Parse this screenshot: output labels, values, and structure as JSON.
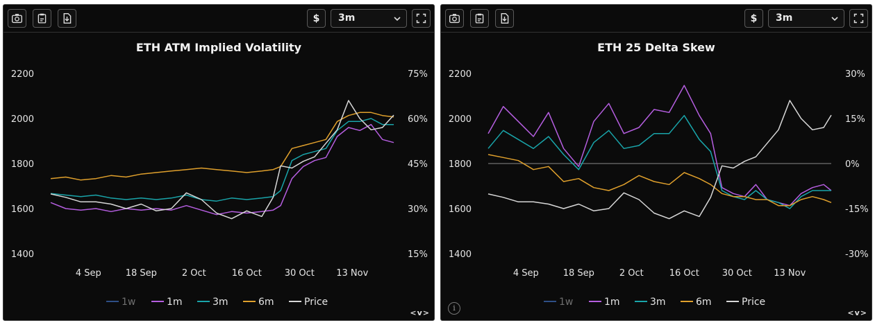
{
  "toolbar": {
    "icons": [
      "camera-icon",
      "clipboard-icon",
      "download-icon"
    ],
    "currency_label": "$",
    "range_label": "3m",
    "fullscreen_icon": "fullscreen-icon"
  },
  "colors": {
    "1w": "#2e4f86",
    "1m": "#b55ee0",
    "3m": "#19a5aa",
    "6m": "#e0a02c",
    "Price": "#d8d8d8"
  },
  "chart_data": [
    {
      "type": "line",
      "title": "ETH ATM Implied Volatility",
      "x_ticks": [
        "4 Sep",
        "18 Sep",
        "2 Oct",
        "16 Oct",
        "30 Oct",
        "13 Nov"
      ],
      "x_range": [
        "2023-08-25",
        "2023-11-24"
      ],
      "y_left": {
        "ticks": [
          "2200",
          "2000",
          "1800",
          "1600",
          "1400"
        ],
        "range": [
          1400,
          2200
        ]
      },
      "y_right": {
        "ticks": [
          "75%",
          "60%",
          "45%",
          "30%",
          "15%"
        ],
        "range": [
          15,
          75
        ]
      },
      "legend": [
        "1w",
        "1m",
        "3m",
        "6m",
        "Price"
      ],
      "legend_position": "bottom",
      "series": [
        {
          "name": "1w",
          "axis": "right",
          "x": [
            "2023-08-25",
            "2023-11-24"
          ],
          "values": [
            null,
            null
          ]
        },
        {
          "name": "1m",
          "axis": "right",
          "x": [
            "2023-08-25",
            "2023-08-29",
            "2023-09-02",
            "2023-09-06",
            "2023-09-10",
            "2023-09-14",
            "2023-09-18",
            "2023-09-22",
            "2023-09-26",
            "2023-09-30",
            "2023-10-04",
            "2023-10-08",
            "2023-10-12",
            "2023-10-16",
            "2023-10-20",
            "2023-10-23",
            "2023-10-25",
            "2023-10-28",
            "2023-10-31",
            "2023-11-03",
            "2023-11-06",
            "2023-11-09",
            "2023-11-12",
            "2023-11-15",
            "2023-11-18",
            "2023-11-21",
            "2023-11-24"
          ],
          "values": [
            32,
            30,
            29.5,
            30,
            29,
            30,
            29.5,
            30,
            29.5,
            31,
            29.5,
            28,
            29,
            28.5,
            29,
            29.5,
            31,
            40,
            44,
            46,
            47,
            54,
            57,
            56,
            58,
            53,
            52
          ]
        },
        {
          "name": "3m",
          "axis": "right",
          "x": [
            "2023-08-25",
            "2023-08-29",
            "2023-09-02",
            "2023-09-06",
            "2023-09-10",
            "2023-09-14",
            "2023-09-18",
            "2023-09-22",
            "2023-09-26",
            "2023-09-30",
            "2023-10-04",
            "2023-10-08",
            "2023-10-12",
            "2023-10-16",
            "2023-10-20",
            "2023-10-23",
            "2023-10-25",
            "2023-10-28",
            "2023-10-31",
            "2023-11-03",
            "2023-11-06",
            "2023-11-09",
            "2023-11-12",
            "2023-11-15",
            "2023-11-18",
            "2023-11-21",
            "2023-11-24"
          ],
          "values": [
            35,
            34.5,
            34,
            34.5,
            33.5,
            33,
            33.5,
            33,
            33.5,
            34.5,
            33,
            32.5,
            33.5,
            33,
            33.5,
            34,
            36,
            46,
            48,
            49,
            50,
            56,
            59,
            59,
            60,
            58,
            58
          ]
        },
        {
          "name": "6m",
          "axis": "right",
          "x": [
            "2023-08-25",
            "2023-08-29",
            "2023-09-02",
            "2023-09-06",
            "2023-09-10",
            "2023-09-14",
            "2023-09-18",
            "2023-09-22",
            "2023-09-26",
            "2023-09-30",
            "2023-10-04",
            "2023-10-08",
            "2023-10-12",
            "2023-10-16",
            "2023-10-20",
            "2023-10-23",
            "2023-10-25",
            "2023-10-28",
            "2023-10-31",
            "2023-11-03",
            "2023-11-06",
            "2023-11-09",
            "2023-11-12",
            "2023-11-15",
            "2023-11-18",
            "2023-11-21",
            "2023-11-24"
          ],
          "values": [
            40,
            40.5,
            39.5,
            40,
            41,
            40.5,
            41.5,
            42,
            42.5,
            43,
            43.5,
            43,
            42.5,
            42,
            42.5,
            43,
            44,
            50,
            51,
            52,
            53,
            59,
            61,
            62,
            62,
            61,
            60.5
          ]
        },
        {
          "name": "Price",
          "axis": "left",
          "x": [
            "2023-08-25",
            "2023-08-29",
            "2023-09-02",
            "2023-09-06",
            "2023-09-10",
            "2023-09-14",
            "2023-09-18",
            "2023-09-22",
            "2023-09-26",
            "2023-09-30",
            "2023-10-04",
            "2023-10-08",
            "2023-10-12",
            "2023-10-16",
            "2023-10-20",
            "2023-10-23",
            "2023-10-25",
            "2023-10-28",
            "2023-10-31",
            "2023-11-03",
            "2023-11-06",
            "2023-11-09",
            "2023-11-12",
            "2023-11-15",
            "2023-11-18",
            "2023-11-21",
            "2023-11-24"
          ],
          "values": [
            1665,
            1650,
            1630,
            1630,
            1620,
            1600,
            1620,
            1590,
            1600,
            1670,
            1640,
            1580,
            1555,
            1590,
            1565,
            1650,
            1790,
            1780,
            1810,
            1830,
            1890,
            1950,
            2080,
            2000,
            1950,
            1960,
            2015
          ]
        }
      ]
    },
    {
      "type": "line",
      "title": "ETH 25 Delta Skew",
      "x_ticks": [
        "4 Sep",
        "18 Sep",
        "2 Oct",
        "16 Oct",
        "30 Oct",
        "13 Nov"
      ],
      "x_range": [
        "2023-08-25",
        "2023-11-24"
      ],
      "y_left": {
        "ticks": [
          "2200",
          "2000",
          "1800",
          "1600",
          "1400"
        ],
        "range": [
          1400,
          2200
        ]
      },
      "y_right": {
        "ticks": [
          "30%",
          "15%",
          "0%",
          "-15%",
          "-30%"
        ],
        "range": [
          -30,
          30
        ]
      },
      "zero_line": 0,
      "legend": [
        "1w",
        "1m",
        "3m",
        "6m",
        "Price"
      ],
      "legend_position": "bottom",
      "series": [
        {
          "name": "1w",
          "axis": "right",
          "x": [
            "2023-08-25",
            "2023-11-24"
          ],
          "values": [
            null,
            null
          ]
        },
        {
          "name": "1m",
          "axis": "right",
          "x": [
            "2023-08-25",
            "2023-08-29",
            "2023-09-02",
            "2023-09-06",
            "2023-09-10",
            "2023-09-14",
            "2023-09-18",
            "2023-09-22",
            "2023-09-26",
            "2023-09-30",
            "2023-10-04",
            "2023-10-08",
            "2023-10-12",
            "2023-10-16",
            "2023-10-20",
            "2023-10-23",
            "2023-10-26",
            "2023-10-29",
            "2023-11-01",
            "2023-11-04",
            "2023-11-07",
            "2023-11-10",
            "2023-11-13",
            "2023-11-16",
            "2023-11-19",
            "2023-11-22",
            "2023-11-24"
          ],
          "values": [
            10,
            19,
            14,
            9,
            17,
            5,
            -1,
            14,
            20,
            10,
            12,
            18,
            17,
            26,
            16,
            10,
            -8,
            -10,
            -11,
            -7,
            -12,
            -13,
            -14,
            -10,
            -8,
            -7,
            -9
          ]
        },
        {
          "name": "3m",
          "axis": "right",
          "x": [
            "2023-08-25",
            "2023-08-29",
            "2023-09-02",
            "2023-09-06",
            "2023-09-10",
            "2023-09-14",
            "2023-09-18",
            "2023-09-22",
            "2023-09-26",
            "2023-09-30",
            "2023-10-04",
            "2023-10-08",
            "2023-10-12",
            "2023-10-16",
            "2023-10-20",
            "2023-10-23",
            "2023-10-26",
            "2023-10-29",
            "2023-11-01",
            "2023-11-04",
            "2023-11-07",
            "2023-11-10",
            "2023-11-13",
            "2023-11-16",
            "2023-11-19",
            "2023-11-22",
            "2023-11-24"
          ],
          "values": [
            5,
            11,
            8,
            5,
            9,
            3,
            -2,
            7,
            11,
            5,
            6,
            10,
            10,
            16,
            8,
            4,
            -9,
            -11,
            -12,
            -9,
            -12,
            -13,
            -15,
            -11,
            -9,
            -9,
            -9
          ]
        },
        {
          "name": "6m",
          "axis": "right",
          "x": [
            "2023-08-25",
            "2023-08-29",
            "2023-09-02",
            "2023-09-06",
            "2023-09-10",
            "2023-09-14",
            "2023-09-18",
            "2023-09-22",
            "2023-09-26",
            "2023-09-30",
            "2023-10-04",
            "2023-10-08",
            "2023-10-12",
            "2023-10-16",
            "2023-10-20",
            "2023-10-23",
            "2023-10-26",
            "2023-10-29",
            "2023-11-01",
            "2023-11-04",
            "2023-11-07",
            "2023-11-10",
            "2023-11-13",
            "2023-11-16",
            "2023-11-19",
            "2023-11-22",
            "2023-11-24"
          ],
          "values": [
            3,
            2,
            1,
            -2,
            -1,
            -6,
            -5,
            -8,
            -9,
            -7,
            -4,
            -6,
            -7,
            -3,
            -5,
            -7,
            -10,
            -11,
            -11,
            -12,
            -12,
            -14,
            -14,
            -12,
            -11,
            -12,
            -13
          ]
        },
        {
          "name": "Price",
          "axis": "left",
          "x": [
            "2023-08-25",
            "2023-08-29",
            "2023-09-02",
            "2023-09-06",
            "2023-09-10",
            "2023-09-14",
            "2023-09-18",
            "2023-09-22",
            "2023-09-26",
            "2023-09-30",
            "2023-10-04",
            "2023-10-08",
            "2023-10-12",
            "2023-10-16",
            "2023-10-20",
            "2023-10-23",
            "2023-10-26",
            "2023-10-29",
            "2023-11-01",
            "2023-11-04",
            "2023-11-07",
            "2023-11-10",
            "2023-11-13",
            "2023-11-16",
            "2023-11-19",
            "2023-11-22",
            "2023-11-24"
          ],
          "values": [
            1665,
            1650,
            1630,
            1630,
            1620,
            1600,
            1620,
            1590,
            1600,
            1670,
            1640,
            1580,
            1555,
            1590,
            1565,
            1650,
            1790,
            1780,
            1810,
            1830,
            1890,
            1950,
            2080,
            2000,
            1950,
            1960,
            2015
          ]
        }
      ]
    }
  ],
  "footer": {
    "nav_label": "<v>",
    "info_icon": "i"
  }
}
